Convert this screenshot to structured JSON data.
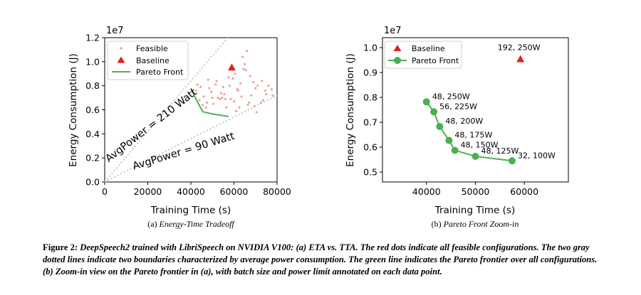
{
  "chart_data": [
    {
      "type": "scatter",
      "xlabel": "Training Time (s)",
      "ylabel": "Energy Consumption (J)",
      "offset_label": "1e7",
      "xlim": [
        0,
        80000
      ],
      "ylim": [
        0,
        12000000
      ],
      "xticks": [
        0,
        20000,
        40000,
        60000,
        80000
      ],
      "yticks": [
        0.0,
        0.2,
        0.4,
        0.6,
        0.8,
        1.0,
        1.2
      ],
      "legend": {
        "placement": "top-left",
        "entries": [
          "Feasible",
          "Baseline",
          "Pareto Front"
        ]
      },
      "series": [
        {
          "name": "Feasible",
          "color": "#f0a0a0",
          "x": [
            41000,
            42500,
            44000,
            45500,
            47000,
            48500,
            50000,
            52000,
            54000,
            56000,
            58000,
            60000,
            62000,
            64000,
            65000,
            66000,
            67500,
            69000,
            71000,
            73000,
            75000,
            77500,
            44500,
            47500,
            49500,
            51500,
            53500,
            55500,
            57500,
            59500,
            61500,
            63500,
            65500,
            68000,
            70000,
            72500,
            74500,
            78000,
            43000,
            46000,
            50500,
            52500,
            58500,
            62500,
            66500,
            64500,
            60500,
            55000,
            56500,
            70500,
            76000,
            63000,
            67000,
            69500,
            48000,
            54500,
            61000,
            73500
          ],
          "y": [
            7.4,
            7.6,
            6.8,
            6.4,
            6.2,
            7.8,
            7.0,
            8.4,
            7.4,
            6.9,
            8.0,
            6.7,
            7.6,
            10.4,
            9.8,
            10.9,
            8.8,
            8.3,
            8.0,
            8.4,
            7.3,
            7.7,
            7.9,
            6.6,
            7.5,
            8.1,
            6.9,
            7.3,
            8.7,
            8.6,
            7.7,
            7.1,
            9.3,
            7.2,
            7.8,
            6.6,
            7.6,
            7.2,
            8.1,
            7.1,
            6.5,
            7.0,
            6.9,
            6.2,
            6.4,
            9.4,
            9.0,
            7.9,
            6.2,
            5.8,
            8.0,
            8.2,
            6.6,
            6.3,
            8.5,
            7.0,
            5.9,
            6.8
          ]
        },
        {
          "name": "Baseline",
          "color": "#e02020",
          "x": [
            59000
          ],
          "y": [
            9.5
          ]
        },
        {
          "name": "Pareto Front",
          "color": "#4caf50",
          "x": [
            40000,
            42500,
            45500,
            50000,
            57500
          ],
          "y": [
            7.8,
            6.85,
            5.85,
            5.65,
            5.45
          ]
        }
      ],
      "reference_lines": [
        {
          "label": "AvgPower = 210 Watt",
          "watts": 210
        },
        {
          "label": "AvgPower = 90 Watt",
          "watts": 90
        }
      ],
      "subcaption": {
        "letter": "(a)",
        "title": "Energy-Time Tradeoff"
      }
    },
    {
      "type": "line",
      "xlabel": "Training Time (s)",
      "ylabel": "Energy Consumption (J)",
      "offset_label": "1e7",
      "xlim": [
        31000,
        69000
      ],
      "ylim": [
        0.46,
        1.04
      ],
      "xticks": [
        40000,
        50000,
        60000
      ],
      "yticks": [
        0.5,
        0.6,
        0.7,
        0.8,
        0.9,
        1.0
      ],
      "legend": {
        "placement": "top-left",
        "entries": [
          "Baseline",
          "Pareto Front"
        ]
      },
      "series": [
        {
          "name": "Baseline",
          "color": "#e02020",
          "x": [
            59200
          ],
          "y": [
            0.953
          ],
          "labels": [
            "192, 250W"
          ]
        },
        {
          "name": "Pareto Front",
          "color": "#4caf50",
          "x": [
            40000,
            41500,
            42700,
            44600,
            45800,
            50000,
            57500
          ],
          "y": [
            0.782,
            0.742,
            0.683,
            0.627,
            0.587,
            0.563,
            0.545
          ],
          "labels": [
            "48, 250W",
            "56, 225W",
            "48, 200W",
            "48, 175W",
            "48, 150W",
            "48, 125W",
            "32, 100W"
          ]
        }
      ],
      "subcaption": {
        "letter": "(b)",
        "title": "Pareto Front Zoom-in"
      }
    }
  ],
  "caption": {
    "label": "Figure 2:",
    "text": "DeepSpeech2 trained with LibriSpeech on NVIDIA V100: (a) ETA vs. TTA. The red dots indicate all feasible configurations. The two gray dotted lines indicate two boundaries characterized by average power consumption. The green line indicates the Pareto frontier over all configurations. (b) Zoom-in view on the Pareto frontier in (a), with batch size and power limit annotated on each data point."
  }
}
